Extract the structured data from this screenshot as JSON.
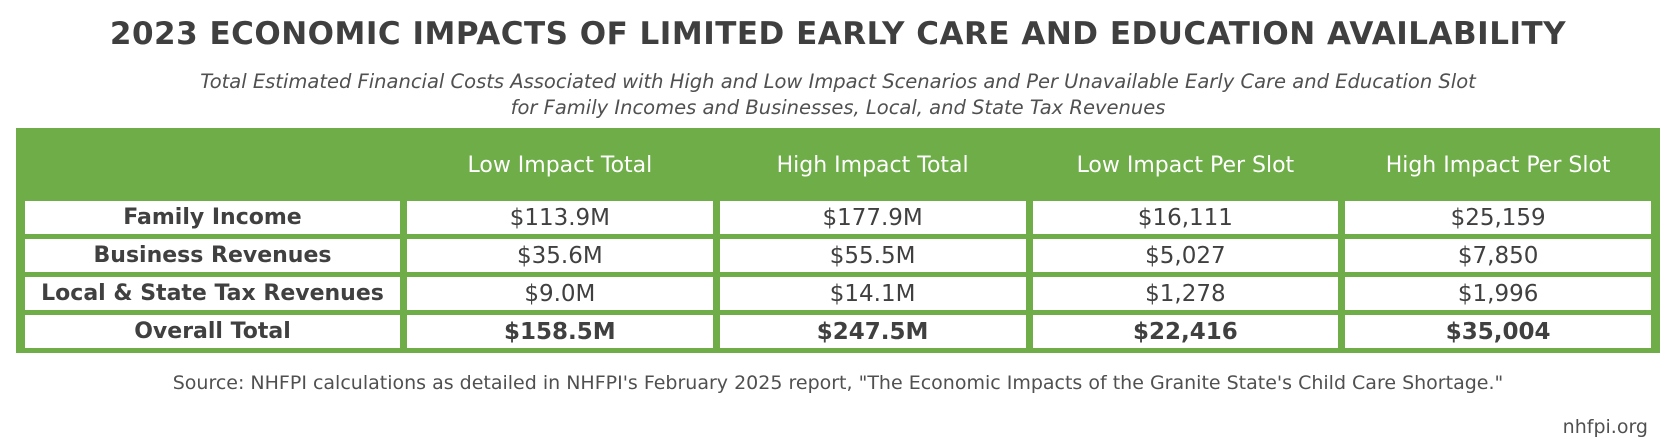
{
  "header": {
    "title": "2023 ECONOMIC IMPACTS OF LIMITED EARLY CARE AND EDUCATION AVAILABILITY",
    "subtitle_lines": [
      "Total Estimated Financial Costs Associated with High and Low Impact Scenarios and Per Unavailable Early Care and Education Slot",
      "for Family Incomes and Businesses, Local, and State Tax Revenues"
    ]
  },
  "table": {
    "columns": [
      "Low Impact Total",
      "High Impact Total",
      "Low Impact Per Slot",
      "High Impact Per Slot"
    ],
    "rows": [
      {
        "label": "Family Income",
        "cells": [
          "$113.9M",
          "$177.9M",
          "$16,111",
          "$25,159"
        ]
      },
      {
        "label": "Business Revenues",
        "cells": [
          "$35.6M",
          "$55.5M",
          "$5,027",
          "$7,850"
        ]
      },
      {
        "label": "Local & State Tax Revenues",
        "cells": [
          "$9.0M",
          "$14.1M",
          "$1,278",
          "$1,996"
        ]
      },
      {
        "label": "Overall Total",
        "cells": [
          "$158.5M",
          "$247.5M",
          "$22,416",
          "$35,004"
        ]
      }
    ]
  },
  "footer": {
    "source": "Source: NHFPI calculations as detailed in NHFPI's February 2025 report, \"The Economic Impacts of the Granite State's Child Care Shortage.\"",
    "credit": "nhfpi.org"
  }
}
